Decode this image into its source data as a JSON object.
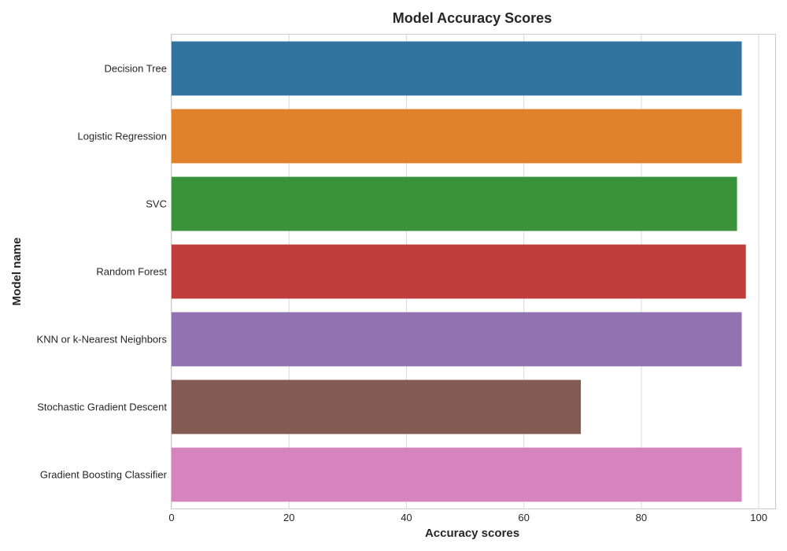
{
  "chart_data": {
    "type": "bar",
    "orientation": "horizontal",
    "title": "Model Accuracy Scores",
    "xlabel": "Accuracy scores",
    "ylabel": "Model name",
    "categories": [
      "Decision Tree",
      "Logistic Regression",
      "SVC",
      "Random Forest",
      "KNN or k-Nearest Neighbors",
      "Stochastic Gradient Descent",
      "Gradient Boosting Classifier"
    ],
    "values": [
      97.1,
      97.1,
      96.3,
      97.8,
      97.1,
      69.7,
      97.1
    ],
    "colors": [
      "#3274a1",
      "#e1812c",
      "#3a923a",
      "#c03d3e",
      "#9372b2",
      "#845b53",
      "#d684bd"
    ],
    "xlim": [
      0,
      102.8
    ],
    "xticks": [
      0,
      20,
      40,
      60,
      80,
      100
    ],
    "grid": true,
    "legend": "none"
  }
}
